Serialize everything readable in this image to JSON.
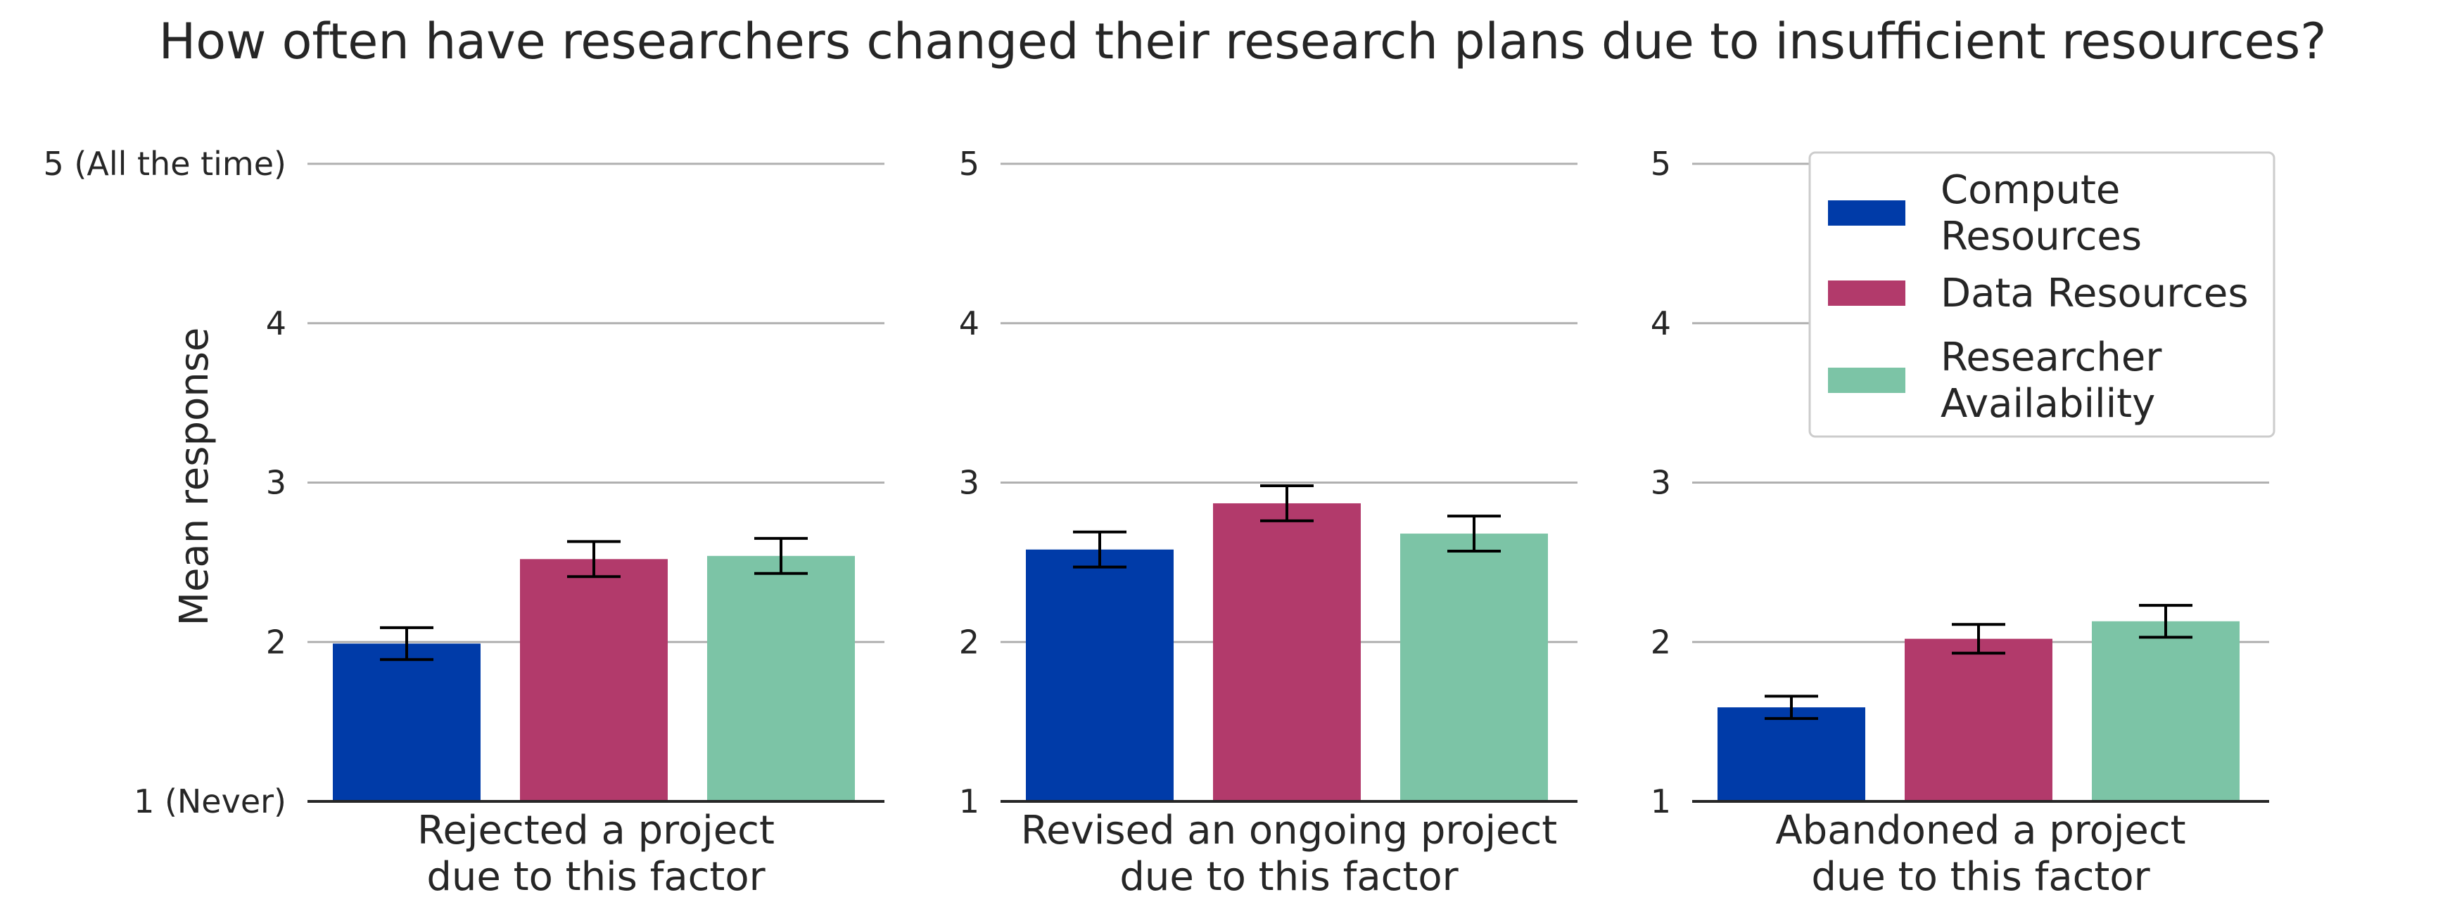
{
  "chart_data": {
    "type": "bar",
    "title": "How often have researchers changed their research plans due to insufficient resources?",
    "ylabel": "Mean response",
    "xlabel": "",
    "ylim": [
      1,
      5
    ],
    "yticks": [
      1,
      2,
      3,
      4,
      5
    ],
    "ytick_labels_first_panel": [
      "1 (Never)",
      "2",
      "3",
      "4",
      "5 (All the time)"
    ],
    "ytick_labels_other_panels": [
      "1",
      "2",
      "3",
      "4",
      "5"
    ],
    "grid": "horizontal",
    "legend_position": "upper-right of third panel",
    "series_colors": [
      "#003BA8",
      "#B23A6B",
      "#7CC4A6"
    ],
    "legend": [
      {
        "lines": [
          "Compute",
          "Resources"
        ]
      },
      {
        "lines": [
          "Data Resources"
        ]
      },
      {
        "lines": [
          "Researcher",
          "Availability"
        ]
      }
    ],
    "panels": [
      {
        "category_lines": [
          "Rejected a project",
          "due to this factor"
        ],
        "values": [
          1.99,
          2.52,
          2.54
        ],
        "errors": [
          0.1,
          0.11,
          0.11
        ]
      },
      {
        "category_lines": [
          "Revised an ongoing project",
          "due to this factor"
        ],
        "values": [
          2.58,
          2.87,
          2.68
        ],
        "errors": [
          0.11,
          0.11,
          0.11
        ]
      },
      {
        "category_lines": [
          "Abandoned a project",
          "due to this factor"
        ],
        "values": [
          1.59,
          2.02,
          2.13
        ],
        "errors": [
          0.07,
          0.09,
          0.1
        ]
      }
    ]
  }
}
